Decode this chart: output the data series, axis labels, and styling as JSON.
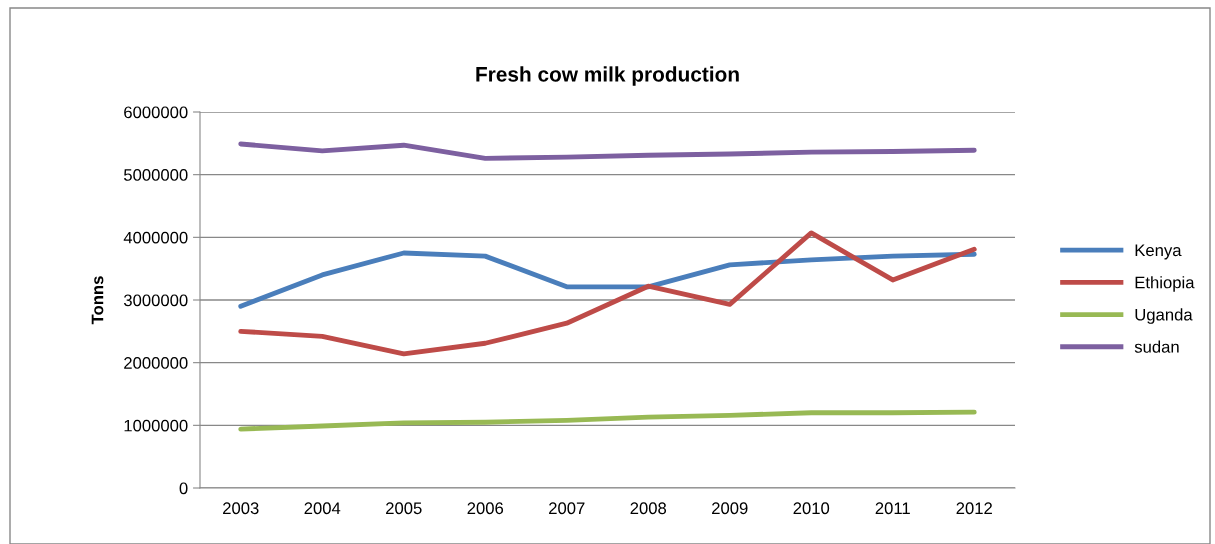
{
  "chart_data": {
    "type": "line",
    "title": "Fresh cow milk production",
    "ylabel": "Tonns",
    "categories": [
      "2003",
      "2004",
      "2005",
      "2006",
      "2007",
      "2008",
      "2009",
      "2010",
      "2011",
      "2012"
    ],
    "series": [
      {
        "name": "Kenya",
        "color": "#4a7ebb",
        "values": [
          2900000,
          3400000,
          3750000,
          3700000,
          3210000,
          3210000,
          3560000,
          3640000,
          3700000,
          3730000
        ]
      },
      {
        "name": "Ethiopia",
        "color": "#be4b48",
        "values": [
          2500000,
          2420000,
          2140000,
          2310000,
          2630000,
          3220000,
          2930000,
          4070000,
          3320000,
          3810000
        ]
      },
      {
        "name": "Uganda",
        "color": "#98b954",
        "values": [
          940000,
          990000,
          1040000,
          1050000,
          1080000,
          1130000,
          1160000,
          1200000,
          1200000,
          1210000
        ]
      },
      {
        "name": "sudan",
        "color": "#7d60a0",
        "values": [
          5490000,
          5380000,
          5470000,
          5260000,
          5280000,
          5310000,
          5330000,
          5360000,
          5370000,
          5390000
        ]
      }
    ],
    "ylim": [
      0,
      6000000
    ],
    "yticks": [
      0,
      1000000,
      2000000,
      3000000,
      4000000,
      5000000,
      6000000
    ],
    "grid": "y",
    "legend": "right",
    "marker": "none",
    "line_style": "solid"
  }
}
